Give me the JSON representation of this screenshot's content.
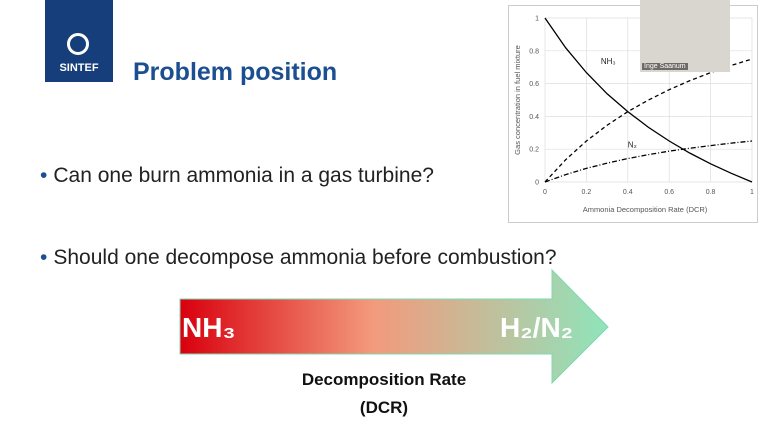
{
  "logo": "SINTEF",
  "title": "Problem position",
  "bullets": [
    "Can one burn ammonia in a gas turbine?",
    "Should one decompose ammonia before combustion?"
  ],
  "arrow": {
    "start_label": "NH₃",
    "end_label": "H₂/N₂",
    "caption": [
      "Decomposition Rate",
      "(DCR)"
    ]
  },
  "video": {
    "name": "Inge Saanum"
  },
  "chart_data": {
    "type": "line",
    "x_label": "Ammonia Decomposition Rate (DCR)",
    "y_label": "Gas concentration in fuel mixture",
    "x": [
      0,
      0.1,
      0.2,
      0.3,
      0.4,
      0.5,
      0.6,
      0.7,
      0.8,
      0.9,
      1
    ],
    "series": [
      {
        "name": "NH₃",
        "color": "#000000",
        "dash": "solid",
        "values": [
          1,
          0.818,
          0.667,
          0.538,
          0.429,
          0.333,
          0.25,
          0.176,
          0.111,
          0.053,
          0
        ]
      },
      {
        "color": "#000000",
        "dash": "dashed",
        "values": [
          0,
          0.136,
          0.25,
          0.346,
          0.429,
          0.5,
          0.563,
          0.618,
          0.667,
          0.711,
          0.75
        ]
      },
      {
        "name": "N₂",
        "color": "#000000",
        "dash": "dashdot",
        "values": [
          0,
          0.045,
          0.083,
          0.115,
          0.143,
          0.167,
          0.188,
          0.206,
          0.222,
          0.237,
          0.25
        ]
      }
    ],
    "xlim": [
      0,
      1
    ],
    "ylim": [
      0,
      1
    ],
    "xticks": [
      0,
      0.2,
      0.4,
      0.6,
      0.8,
      1
    ],
    "yticks": [
      0,
      0.2,
      0.4,
      0.6,
      0.8,
      1
    ],
    "grid": true
  }
}
